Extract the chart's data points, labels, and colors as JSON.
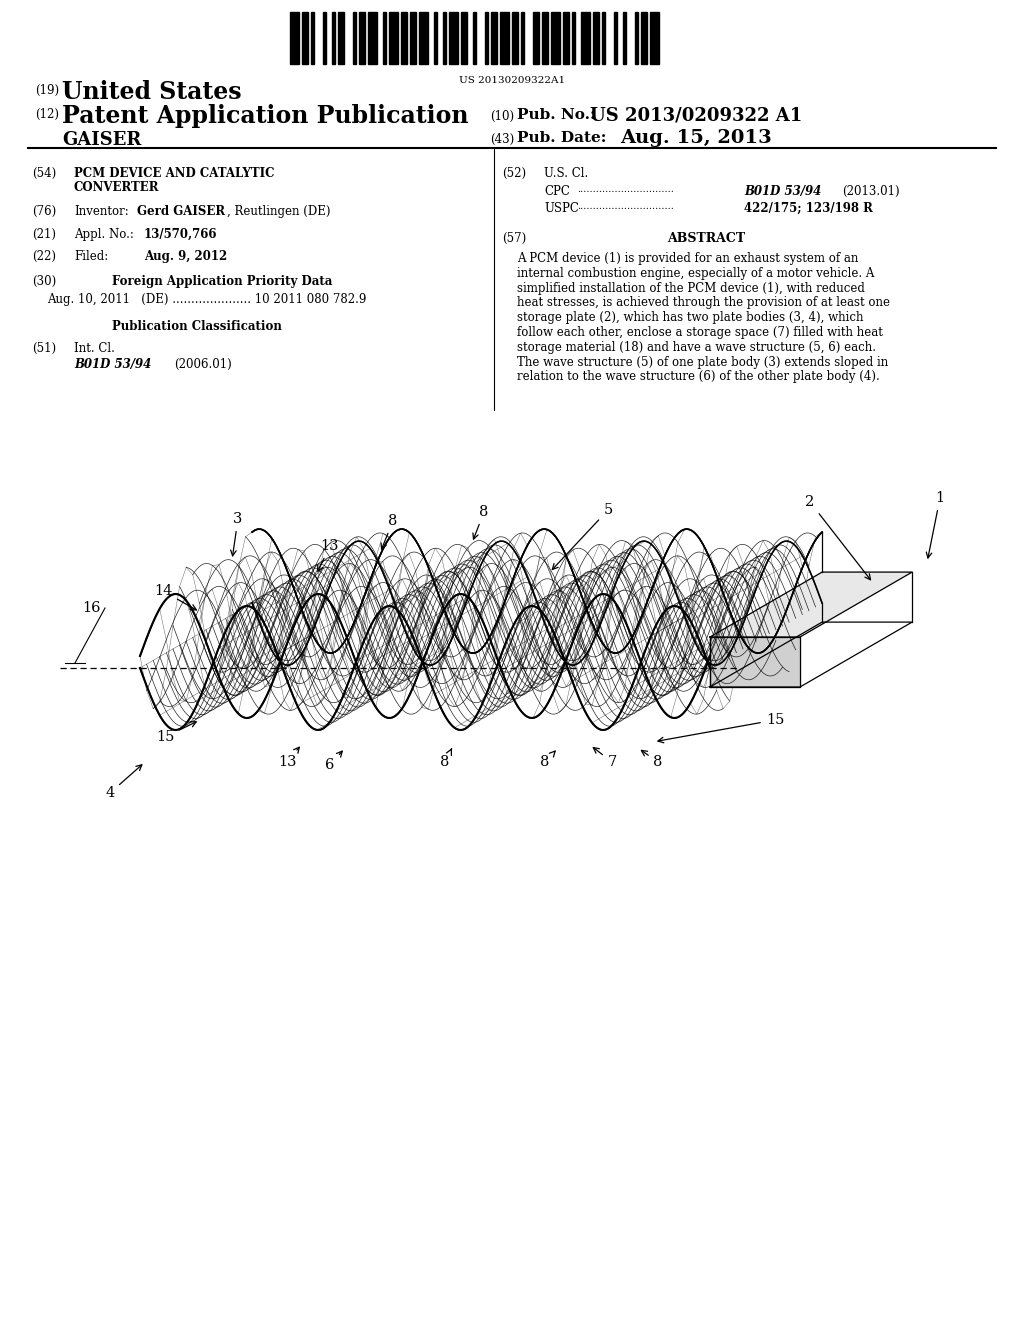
{
  "barcode_text": "US 20130209322A1",
  "country": "United States",
  "pub_type": "Patent Application Publication",
  "pubno_value": "US 2013/0209322 A1",
  "pubdate_value": "Aug. 15, 2013",
  "gaiser": "GAISER",
  "inventor_value": "Gerd GAISER, Reutlingen (DE)",
  "appl_value": "13/570,766",
  "filed_value": "Aug. 9, 2012",
  "foreign_data": "Aug. 10, 2011   (DE) ..................... 10 2011 080 782.9",
  "intcl_value": "B01D 53/94",
  "intcl_year": "(2006.01)",
  "cpc_value": "B01D 53/94 (2013.01)",
  "uspc_value": "422/175; 123/198 R",
  "abstract_lines": [
    "A PCM device (1) is provided for an exhaust system of an",
    "internal combustion engine, especially of a motor vehicle. A",
    "simplified installation of the PCM device (1), with reduced",
    "heat stresses, is achieved through the provision of at least one",
    "storage plate (2), which has two plate bodies (3, 4), which",
    "follow each other, enclose a storage space (7) filled with heat",
    "storage material (18) and have a wave structure (5, 6) each.",
    "The wave structure (5) of one plate body (3) extends sloped in",
    "relation to the wave structure (6) of the other plate body (4)."
  ],
  "bg_color": "#ffffff",
  "text_color": "#000000"
}
